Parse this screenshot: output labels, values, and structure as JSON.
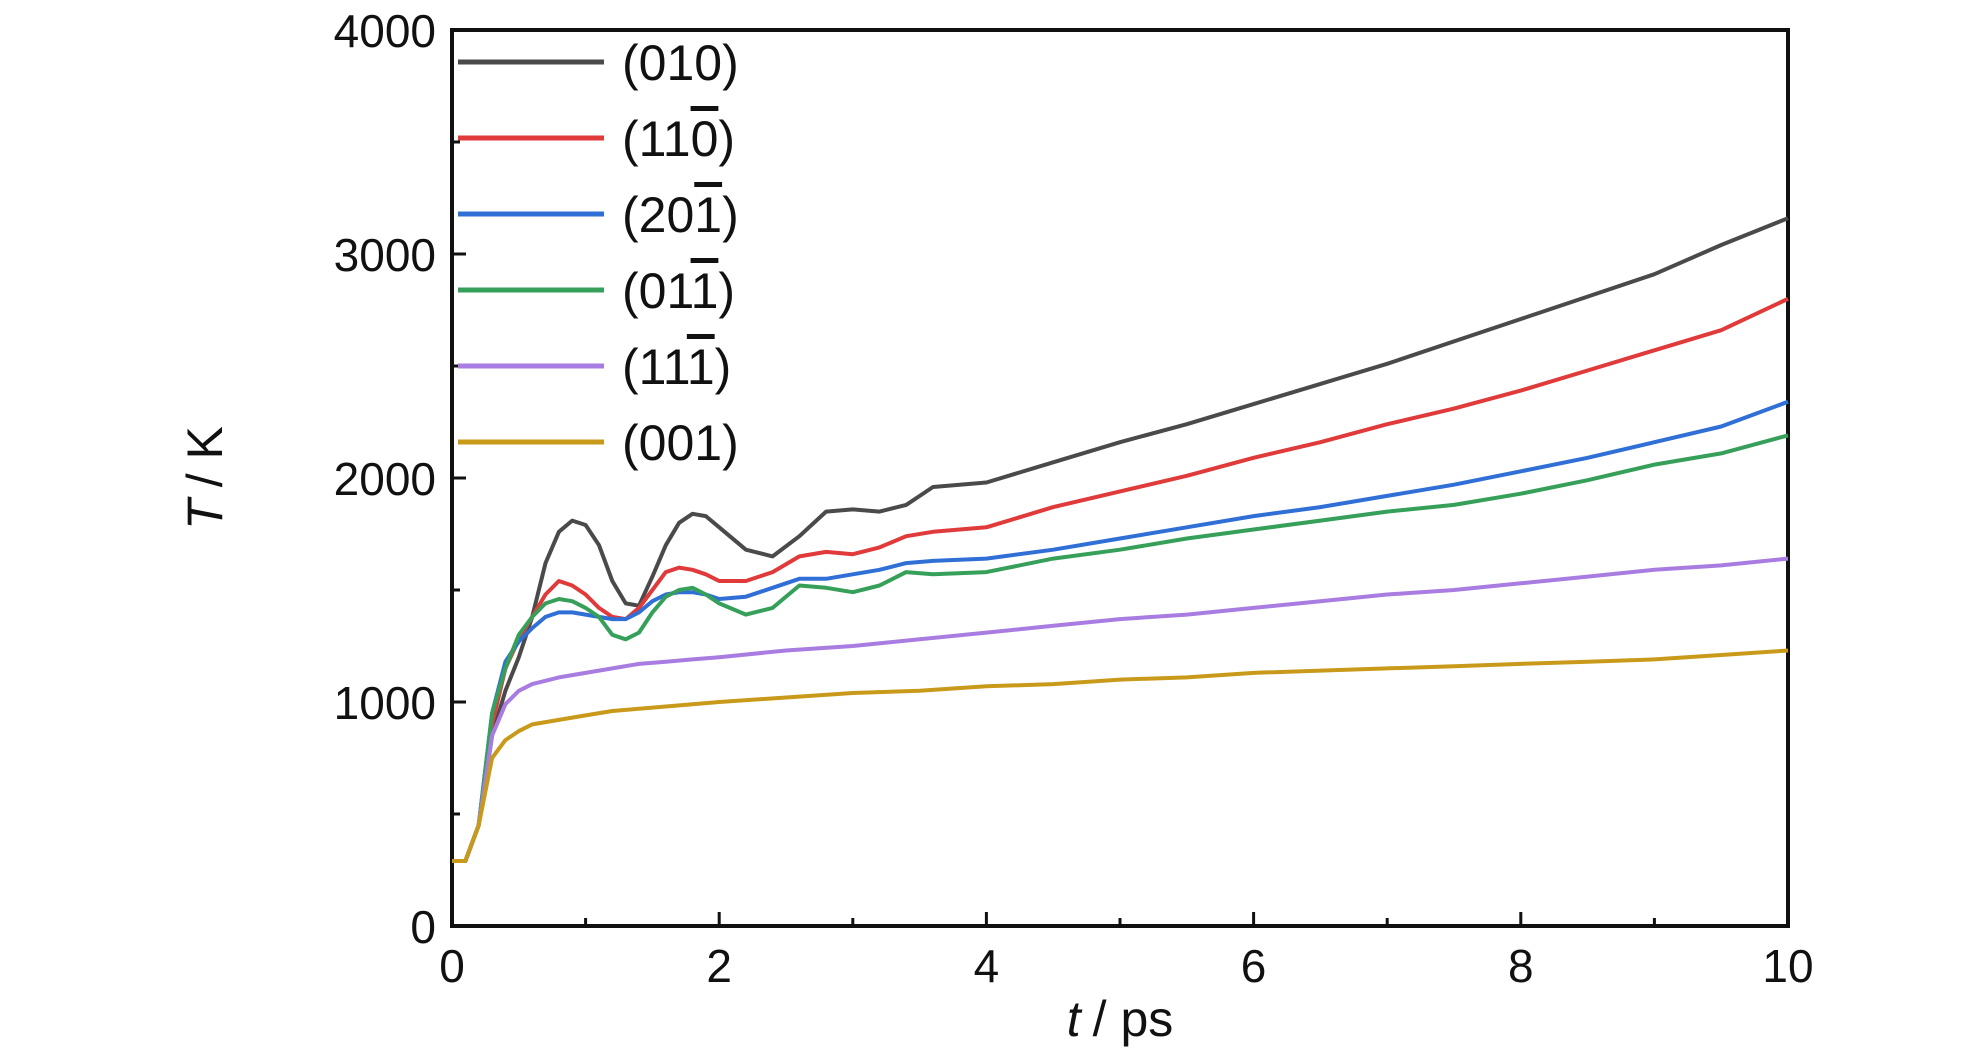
{
  "chart_data": {
    "type": "line",
    "xlabel_var": "t",
    "xlabel_unit": "/ ps",
    "ylabel_var": "T",
    "ylabel_unit": "/ K",
    "xlim": [
      0,
      10
    ],
    "ylim": [
      0,
      4000
    ],
    "x_ticks": [
      0,
      2,
      4,
      6,
      8,
      10
    ],
    "y_ticks": [
      0,
      1000,
      2000,
      3000,
      4000
    ],
    "x_tick_labels": [
      "0",
      "2",
      "4",
      "6",
      "8",
      "10"
    ],
    "y_tick_labels": [
      "0",
      "1000",
      "2000",
      "3000",
      "4000"
    ],
    "grid": false,
    "legend_position": "top-left",
    "series": [
      {
        "name": "(010)",
        "label_parts": [
          "(010)"
        ],
        "overline_digit": -1,
        "color": "#4a4a4a",
        "points": [
          [
            0,
            290
          ],
          [
            0.1,
            290
          ],
          [
            0.2,
            450
          ],
          [
            0.3,
            850
          ],
          [
            0.4,
            1050
          ],
          [
            0.5,
            1200
          ],
          [
            0.6,
            1380
          ],
          [
            0.7,
            1620
          ],
          [
            0.8,
            1760
          ],
          [
            0.9,
            1810
          ],
          [
            1.0,
            1790
          ],
          [
            1.1,
            1700
          ],
          [
            1.2,
            1540
          ],
          [
            1.3,
            1440
          ],
          [
            1.4,
            1430
          ],
          [
            1.5,
            1560
          ],
          [
            1.6,
            1700
          ],
          [
            1.7,
            1800
          ],
          [
            1.8,
            1840
          ],
          [
            1.9,
            1830
          ],
          [
            2.0,
            1780
          ],
          [
            2.2,
            1680
          ],
          [
            2.4,
            1650
          ],
          [
            2.6,
            1740
          ],
          [
            2.8,
            1850
          ],
          [
            3.0,
            1860
          ],
          [
            3.2,
            1850
          ],
          [
            3.4,
            1880
          ],
          [
            3.6,
            1960
          ],
          [
            4.0,
            1980
          ],
          [
            4.5,
            2070
          ],
          [
            5.0,
            2160
          ],
          [
            5.5,
            2240
          ],
          [
            6.0,
            2330
          ],
          [
            6.5,
            2420
          ],
          [
            7.0,
            2510
          ],
          [
            7.5,
            2610
          ],
          [
            8.0,
            2710
          ],
          [
            8.5,
            2810
          ],
          [
            9.0,
            2910
          ],
          [
            9.5,
            3040
          ],
          [
            10.0,
            3160
          ]
        ]
      },
      {
        "name": "(110)",
        "label_parts": [
          "(11",
          "0",
          ")"
        ],
        "overline_digit": 1,
        "color": "#e03a3a",
        "points": [
          [
            0,
            290
          ],
          [
            0.1,
            290
          ],
          [
            0.2,
            450
          ],
          [
            0.3,
            900
          ],
          [
            0.4,
            1150
          ],
          [
            0.5,
            1280
          ],
          [
            0.6,
            1380
          ],
          [
            0.7,
            1480
          ],
          [
            0.8,
            1540
          ],
          [
            0.9,
            1520
          ],
          [
            1.0,
            1480
          ],
          [
            1.1,
            1420
          ],
          [
            1.2,
            1380
          ],
          [
            1.3,
            1370
          ],
          [
            1.4,
            1420
          ],
          [
            1.5,
            1500
          ],
          [
            1.6,
            1580
          ],
          [
            1.7,
            1600
          ],
          [
            1.8,
            1590
          ],
          [
            1.9,
            1570
          ],
          [
            2.0,
            1540
          ],
          [
            2.2,
            1540
          ],
          [
            2.4,
            1580
          ],
          [
            2.6,
            1650
          ],
          [
            2.8,
            1670
          ],
          [
            3.0,
            1660
          ],
          [
            3.2,
            1690
          ],
          [
            3.4,
            1740
          ],
          [
            3.6,
            1760
          ],
          [
            4.0,
            1780
          ],
          [
            4.5,
            1870
          ],
          [
            5.0,
            1940
          ],
          [
            5.5,
            2010
          ],
          [
            6.0,
            2090
          ],
          [
            6.5,
            2160
          ],
          [
            7.0,
            2240
          ],
          [
            7.5,
            2310
          ],
          [
            8.0,
            2390
          ],
          [
            8.5,
            2480
          ],
          [
            9.0,
            2570
          ],
          [
            9.5,
            2660
          ],
          [
            10.0,
            2800
          ]
        ]
      },
      {
        "name": "(201)",
        "label_parts": [
          "(20",
          "1",
          ")"
        ],
        "overline_digit": 1,
        "color": "#2f6fd6",
        "points": [
          [
            0,
            290
          ],
          [
            0.1,
            290
          ],
          [
            0.2,
            450
          ],
          [
            0.3,
            950
          ],
          [
            0.4,
            1180
          ],
          [
            0.5,
            1270
          ],
          [
            0.6,
            1330
          ],
          [
            0.7,
            1380
          ],
          [
            0.8,
            1400
          ],
          [
            0.9,
            1400
          ],
          [
            1.0,
            1390
          ],
          [
            1.1,
            1380
          ],
          [
            1.2,
            1370
          ],
          [
            1.3,
            1370
          ],
          [
            1.4,
            1400
          ],
          [
            1.5,
            1450
          ],
          [
            1.6,
            1480
          ],
          [
            1.7,
            1490
          ],
          [
            1.8,
            1490
          ],
          [
            1.9,
            1480
          ],
          [
            2.0,
            1460
          ],
          [
            2.2,
            1470
          ],
          [
            2.4,
            1510
          ],
          [
            2.6,
            1550
          ],
          [
            2.8,
            1550
          ],
          [
            3.0,
            1570
          ],
          [
            3.2,
            1590
          ],
          [
            3.4,
            1620
          ],
          [
            3.6,
            1630
          ],
          [
            4.0,
            1640
          ],
          [
            4.5,
            1680
          ],
          [
            5.0,
            1730
          ],
          [
            5.5,
            1780
          ],
          [
            6.0,
            1830
          ],
          [
            6.5,
            1870
          ],
          [
            7.0,
            1920
          ],
          [
            7.5,
            1970
          ],
          [
            8.0,
            2030
          ],
          [
            8.5,
            2090
          ],
          [
            9.0,
            2160
          ],
          [
            9.5,
            2230
          ],
          [
            10.0,
            2340
          ]
        ]
      },
      {
        "name": "(011)",
        "label_parts": [
          "(01",
          "1",
          ")"
        ],
        "overline_digit": 1,
        "color": "#36a05a",
        "points": [
          [
            0,
            290
          ],
          [
            0.1,
            290
          ],
          [
            0.2,
            450
          ],
          [
            0.3,
            950
          ],
          [
            0.4,
            1150
          ],
          [
            0.5,
            1300
          ],
          [
            0.6,
            1380
          ],
          [
            0.7,
            1440
          ],
          [
            0.8,
            1460
          ],
          [
            0.9,
            1450
          ],
          [
            1.0,
            1420
          ],
          [
            1.1,
            1380
          ],
          [
            1.2,
            1300
          ],
          [
            1.3,
            1280
          ],
          [
            1.4,
            1310
          ],
          [
            1.5,
            1400
          ],
          [
            1.6,
            1470
          ],
          [
            1.7,
            1500
          ],
          [
            1.8,
            1510
          ],
          [
            1.9,
            1480
          ],
          [
            2.0,
            1440
          ],
          [
            2.2,
            1390
          ],
          [
            2.4,
            1420
          ],
          [
            2.6,
            1520
          ],
          [
            2.8,
            1510
          ],
          [
            3.0,
            1490
          ],
          [
            3.2,
            1520
          ],
          [
            3.4,
            1580
          ],
          [
            3.6,
            1570
          ],
          [
            4.0,
            1580
          ],
          [
            4.5,
            1640
          ],
          [
            5.0,
            1680
          ],
          [
            5.5,
            1730
          ],
          [
            6.0,
            1770
          ],
          [
            6.5,
            1810
          ],
          [
            7.0,
            1850
          ],
          [
            7.5,
            1880
          ],
          [
            8.0,
            1930
          ],
          [
            8.5,
            1990
          ],
          [
            9.0,
            2060
          ],
          [
            9.5,
            2110
          ],
          [
            10.0,
            2190
          ]
        ]
      },
      {
        "name": "(111)",
        "label_parts": [
          "(11",
          "1",
          ")"
        ],
        "overline_digit": 1,
        "color": "#a87ce0",
        "points": [
          [
            0,
            290
          ],
          [
            0.1,
            290
          ],
          [
            0.2,
            450
          ],
          [
            0.3,
            850
          ],
          [
            0.4,
            990
          ],
          [
            0.5,
            1050
          ],
          [
            0.6,
            1080
          ],
          [
            0.8,
            1110
          ],
          [
            1.0,
            1130
          ],
          [
            1.2,
            1150
          ],
          [
            1.4,
            1170
          ],
          [
            1.6,
            1180
          ],
          [
            1.8,
            1190
          ],
          [
            2.0,
            1200
          ],
          [
            2.5,
            1230
          ],
          [
            3.0,
            1250
          ],
          [
            3.5,
            1280
          ],
          [
            4.0,
            1310
          ],
          [
            4.5,
            1340
          ],
          [
            5.0,
            1370
          ],
          [
            5.5,
            1390
          ],
          [
            6.0,
            1420
          ],
          [
            6.5,
            1450
          ],
          [
            7.0,
            1480
          ],
          [
            7.5,
            1500
          ],
          [
            8.0,
            1530
          ],
          [
            8.5,
            1560
          ],
          [
            9.0,
            1590
          ],
          [
            9.5,
            1610
          ],
          [
            10.0,
            1640
          ]
        ]
      },
      {
        "name": "(001)",
        "label_parts": [
          "(001)"
        ],
        "overline_digit": -1,
        "color": "#c99a1a",
        "points": [
          [
            0,
            290
          ],
          [
            0.1,
            290
          ],
          [
            0.2,
            450
          ],
          [
            0.3,
            750
          ],
          [
            0.4,
            830
          ],
          [
            0.5,
            870
          ],
          [
            0.6,
            900
          ],
          [
            0.8,
            920
          ],
          [
            1.0,
            940
          ],
          [
            1.2,
            960
          ],
          [
            1.4,
            970
          ],
          [
            1.6,
            980
          ],
          [
            1.8,
            990
          ],
          [
            2.0,
            1000
          ],
          [
            2.5,
            1020
          ],
          [
            3.0,
            1040
          ],
          [
            3.5,
            1050
          ],
          [
            4.0,
            1070
          ],
          [
            4.5,
            1080
          ],
          [
            5.0,
            1100
          ],
          [
            5.5,
            1110
          ],
          [
            6.0,
            1130
          ],
          [
            6.5,
            1140
          ],
          [
            7.0,
            1150
          ],
          [
            7.5,
            1160
          ],
          [
            8.0,
            1170
          ],
          [
            8.5,
            1180
          ],
          [
            9.0,
            1190
          ],
          [
            9.5,
            1210
          ],
          [
            10.0,
            1230
          ]
        ]
      }
    ]
  }
}
